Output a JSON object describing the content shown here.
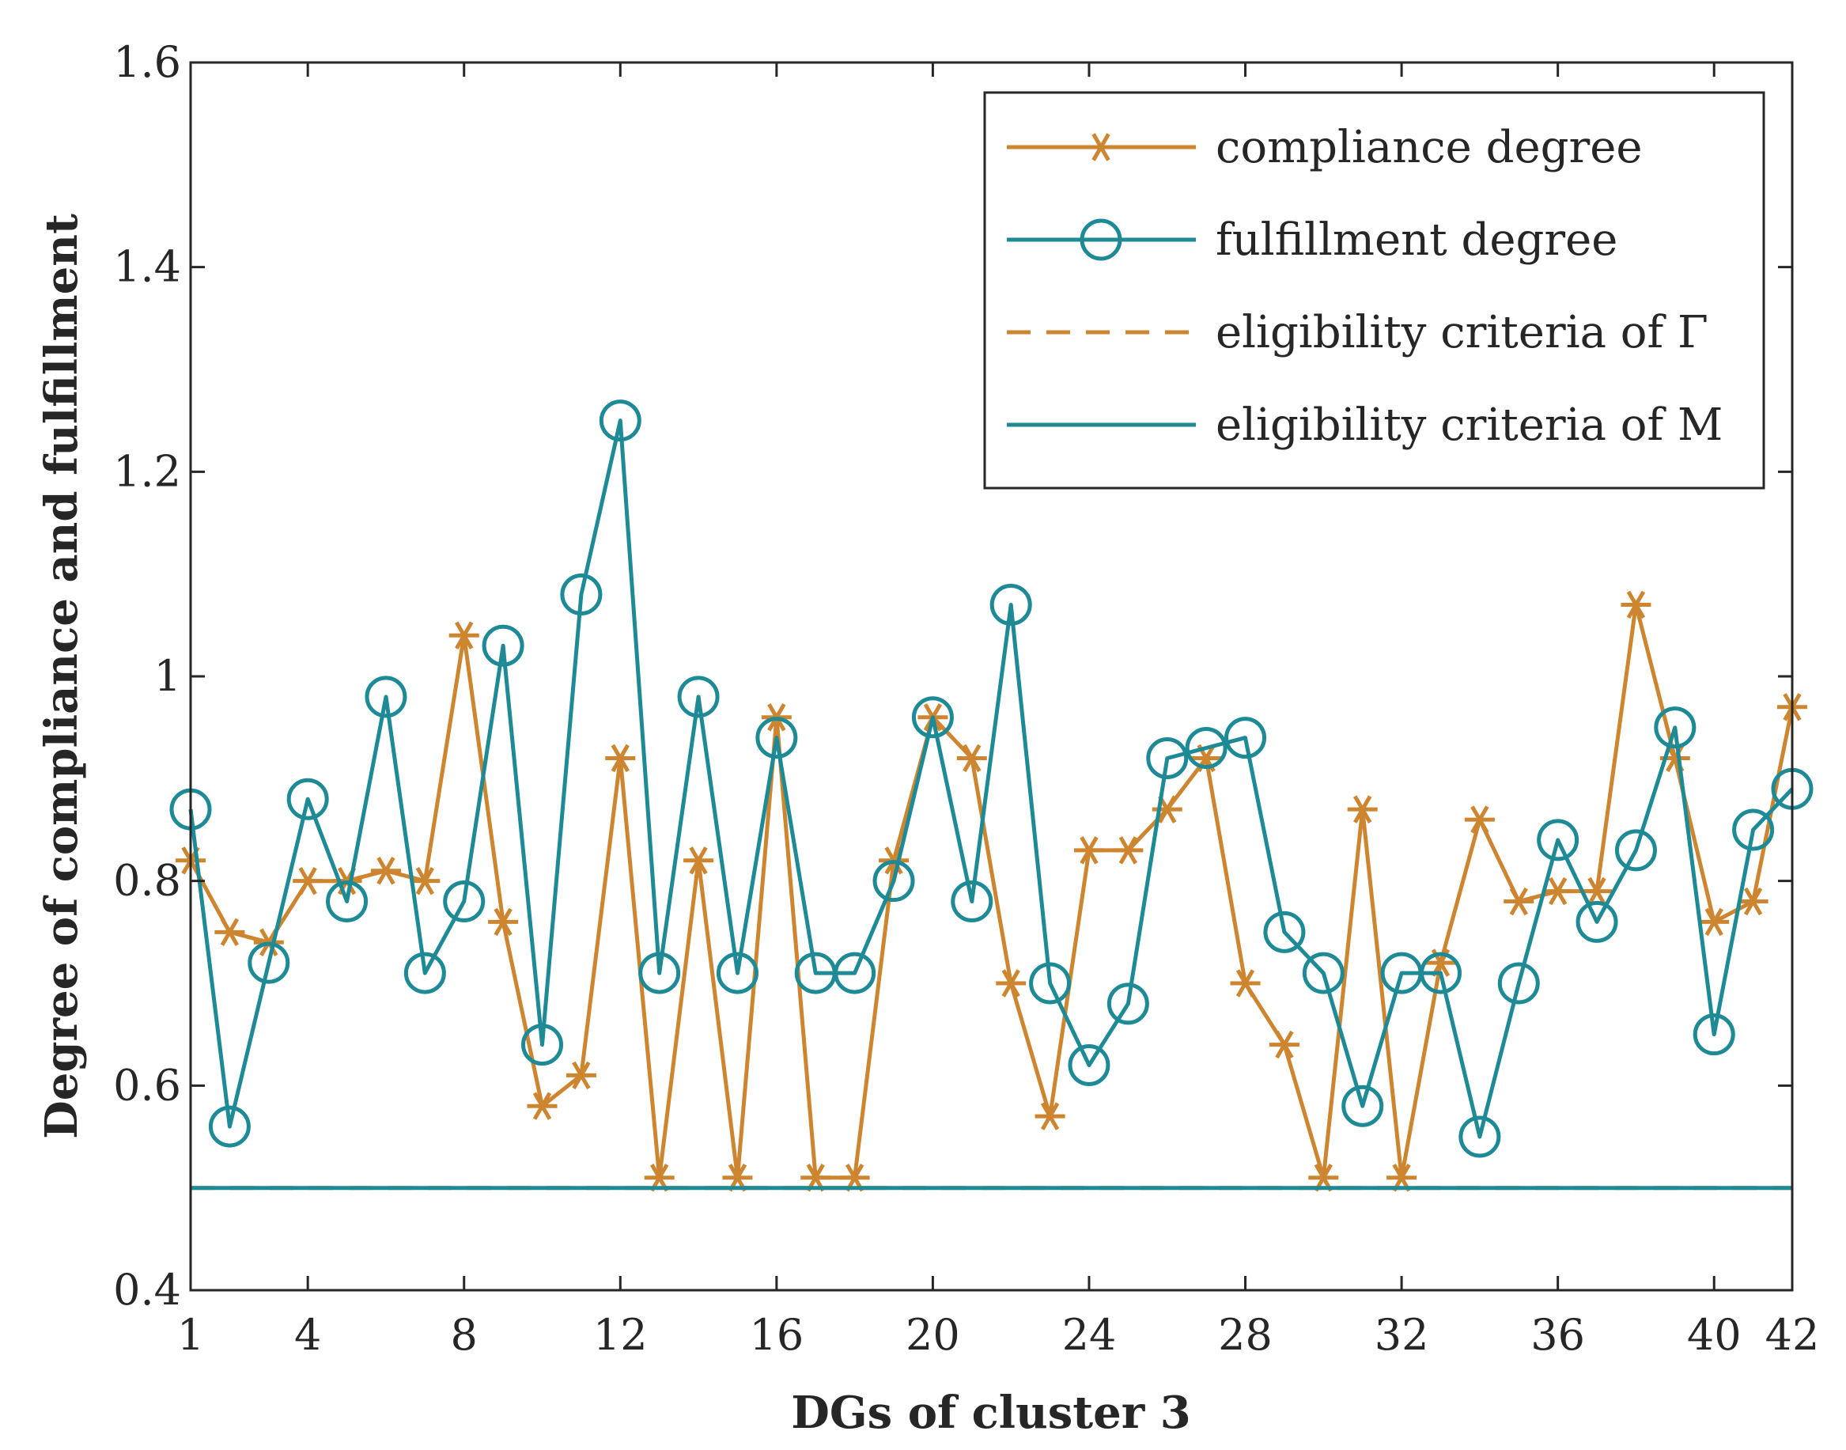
{
  "chart_data": {
    "type": "line",
    "title": "",
    "xlabel": "DGs of cluster 3",
    "ylabel": "Degree of compliance and fulfillment",
    "xlim": [
      1,
      42
    ],
    "ylim": [
      0.4,
      1.6
    ],
    "xticks": [
      1,
      4,
      8,
      12,
      16,
      20,
      24,
      28,
      32,
      36,
      40,
      42
    ],
    "xtick_labels": [
      "1",
      "4",
      "8",
      "12",
      "16",
      "20",
      "24",
      "28",
      "32",
      "36",
      "40",
      "42"
    ],
    "yticks": [
      0.4,
      0.6,
      0.8,
      1.0,
      1.2,
      1.4,
      1.6
    ],
    "ytick_labels": [
      "0.4",
      "0.6",
      "0.8",
      "1",
      "1.2",
      "1.4",
      "1.6"
    ],
    "grid": false,
    "legend_position": "top-right",
    "x": [
      1,
      2,
      3,
      4,
      5,
      6,
      7,
      8,
      9,
      10,
      11,
      12,
      13,
      14,
      15,
      16,
      17,
      18,
      19,
      20,
      21,
      22,
      23,
      24,
      25,
      26,
      27,
      28,
      29,
      30,
      31,
      32,
      33,
      34,
      35,
      36,
      37,
      38,
      39,
      40,
      41,
      42
    ],
    "series": [
      {
        "name": "compliance degree",
        "color": "#cd8530",
        "marker": "asterisk",
        "line": "solid",
        "values": [
          0.82,
          0.75,
          0.74,
          0.8,
          0.8,
          0.81,
          0.8,
          1.04,
          0.76,
          0.58,
          0.61,
          0.92,
          0.51,
          0.82,
          0.51,
          0.96,
          0.51,
          0.51,
          0.82,
          0.96,
          0.92,
          0.7,
          0.57,
          0.83,
          0.83,
          0.87,
          0.92,
          0.7,
          0.64,
          0.51,
          0.87,
          0.51,
          0.72,
          0.86,
          0.78,
          0.79,
          0.79,
          1.07,
          0.92,
          0.76,
          0.78,
          0.97
        ]
      },
      {
        "name": "fulfillment degree",
        "color": "#1d8a96",
        "marker": "circle",
        "line": "solid",
        "values": [
          0.87,
          0.56,
          0.72,
          0.88,
          0.78,
          0.98,
          0.71,
          0.78,
          1.03,
          0.64,
          1.08,
          1.25,
          0.71,
          0.98,
          0.71,
          0.94,
          0.71,
          0.71,
          0.8,
          0.96,
          0.78,
          1.07,
          0.7,
          0.62,
          0.68,
          0.92,
          0.93,
          0.94,
          0.75,
          0.71,
          0.58,
          0.71,
          0.71,
          0.55,
          0.7,
          0.84,
          0.76,
          0.83,
          0.95,
          0.65,
          0.85,
          0.89
        ]
      },
      {
        "name": "eligibility criteria of Γ",
        "color": "#cd8530",
        "marker": "none",
        "line": "dashed",
        "values": [
          0.5,
          0.5,
          0.5,
          0.5,
          0.5,
          0.5,
          0.5,
          0.5,
          0.5,
          0.5,
          0.5,
          0.5,
          0.5,
          0.5,
          0.5,
          0.5,
          0.5,
          0.5,
          0.5,
          0.5,
          0.5,
          0.5,
          0.5,
          0.5,
          0.5,
          0.5,
          0.5,
          0.5,
          0.5,
          0.5,
          0.5,
          0.5,
          0.5,
          0.5,
          0.5,
          0.5,
          0.5,
          0.5,
          0.5,
          0.5,
          0.5,
          0.5
        ]
      },
      {
        "name": "eligibility criteria of M",
        "color": "#1d8a96",
        "marker": "none",
        "line": "solid",
        "values": [
          0.5,
          0.5,
          0.5,
          0.5,
          0.5,
          0.5,
          0.5,
          0.5,
          0.5,
          0.5,
          0.5,
          0.5,
          0.5,
          0.5,
          0.5,
          0.5,
          0.5,
          0.5,
          0.5,
          0.5,
          0.5,
          0.5,
          0.5,
          0.5,
          0.5,
          0.5,
          0.5,
          0.5,
          0.5,
          0.5,
          0.5,
          0.5,
          0.5,
          0.5,
          0.5,
          0.5,
          0.5,
          0.5,
          0.5,
          0.5,
          0.5,
          0.5
        ]
      }
    ]
  }
}
